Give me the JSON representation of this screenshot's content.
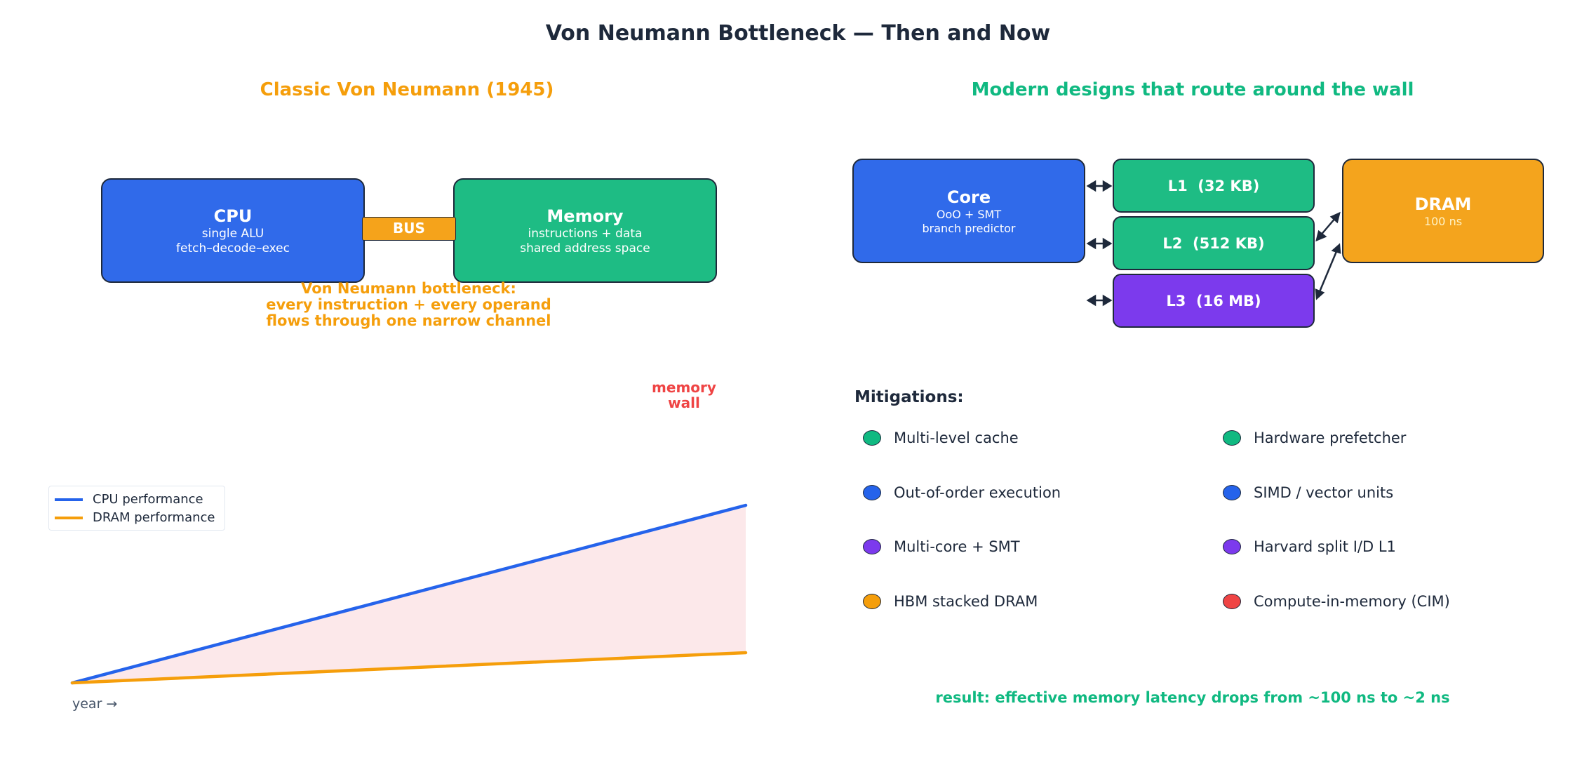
{
  "title": "Von Neumann Bottleneck — Then and Now",
  "left_panel": {
    "title": "Classic Von Neumann (1945)",
    "cpu": {
      "title": "CPU",
      "line1": "single ALU",
      "line2": "fetch–decode–exec"
    },
    "bus_label": "BUS",
    "memory": {
      "title": "Memory",
      "line1": "instructions + data",
      "line2": "shared address space"
    },
    "bottleneck_note": {
      "line1": "Von Neumann bottleneck:",
      "line2": "every instruction + every operand",
      "line3": "flows through one narrow channel"
    }
  },
  "right_panel": {
    "title": "Modern designs that route around the wall",
    "core": {
      "title": "Core",
      "line1": "OoO + SMT",
      "line2": "branch predictor"
    },
    "l1": "L1  (32 KB)",
    "l2": "L2  (512 KB)",
    "l3": "L3  (16 MB)",
    "dram": {
      "title": "DRAM",
      "latency": "100 ns"
    },
    "mitigations_heading": "Mitigations:",
    "mitigations": [
      {
        "label": "Multi-level cache",
        "color": "#10b981"
      },
      {
        "label": "Hardware prefetcher",
        "color": "#10b981"
      },
      {
        "label": "Out-of-order execution",
        "color": "#2563eb"
      },
      {
        "label": "SIMD / vector units",
        "color": "#2563eb"
      },
      {
        "label": "Multi-core + SMT",
        "color": "#7c3aed"
      },
      {
        "label": "Harvard split I/D L1",
        "color": "#7c3aed"
      },
      {
        "label": "HBM stacked DRAM",
        "color": "#f59e0b"
      },
      {
        "label": "Compute-in-memory (CIM)",
        "color": "#ef4444"
      }
    ],
    "result_note": "result: effective memory latency drops from ~100 ns to ~2 ns"
  },
  "chart_data": {
    "type": "line",
    "xlabel": "year →",
    "ylabel": "",
    "annotation": {
      "line1": "memory",
      "line2": "wall"
    },
    "legend_position": "upper-left",
    "grid": false,
    "x": [
      0,
      1
    ],
    "series": [
      {
        "name": "CPU performance",
        "values": [
          0,
          1.0
        ],
        "color": "#2563eb"
      },
      {
        "name": "DRAM performance",
        "values": [
          0,
          0.17
        ],
        "color": "#f59e0b"
      }
    ],
    "gap_fill_color": "#fce8ea"
  },
  "colors": {
    "cpu_blue": "#306aea",
    "memory_green": "#1ebc84",
    "bus_orange": "#f5a31b",
    "l3_purple": "#7c3aed",
    "wall_red": "#ef4444"
  }
}
